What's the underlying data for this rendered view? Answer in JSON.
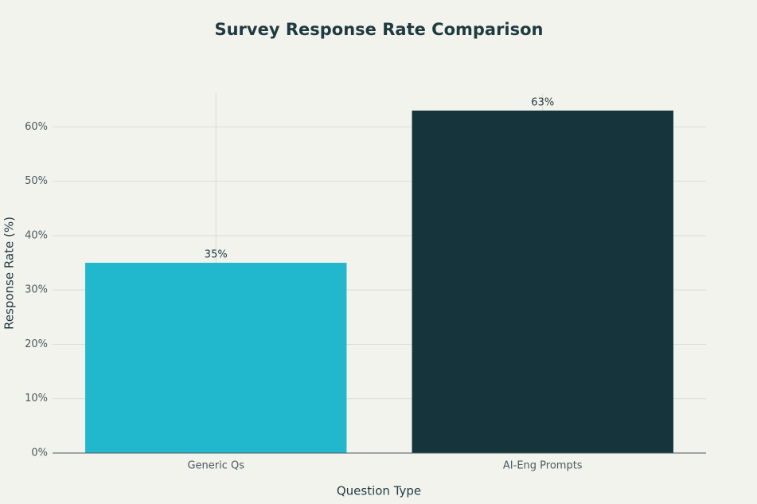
{
  "chart_data": {
    "type": "bar",
    "title": "Survey Response Rate Comparison",
    "x_label": "Question Type",
    "y_label": "Response Rate (%)",
    "categories": [
      "Generic Qs",
      "AI-Eng Prompts"
    ],
    "values": [
      35,
      63
    ],
    "value_labels": [
      "35%",
      "63%"
    ],
    "colors": [
      "#21b8ce",
      "#16343b"
    ],
    "ylim": [
      0,
      66.2
    ],
    "yticks": [
      {
        "value": 0,
        "label": "0%"
      },
      {
        "value": 10,
        "label": "10%"
      },
      {
        "value": 20,
        "label": "20%"
      },
      {
        "value": 30,
        "label": "30%"
      },
      {
        "value": 40,
        "label": "40%"
      },
      {
        "value": 50,
        "label": "50%"
      },
      {
        "value": 60,
        "label": "60%"
      }
    ],
    "grid": true
  }
}
